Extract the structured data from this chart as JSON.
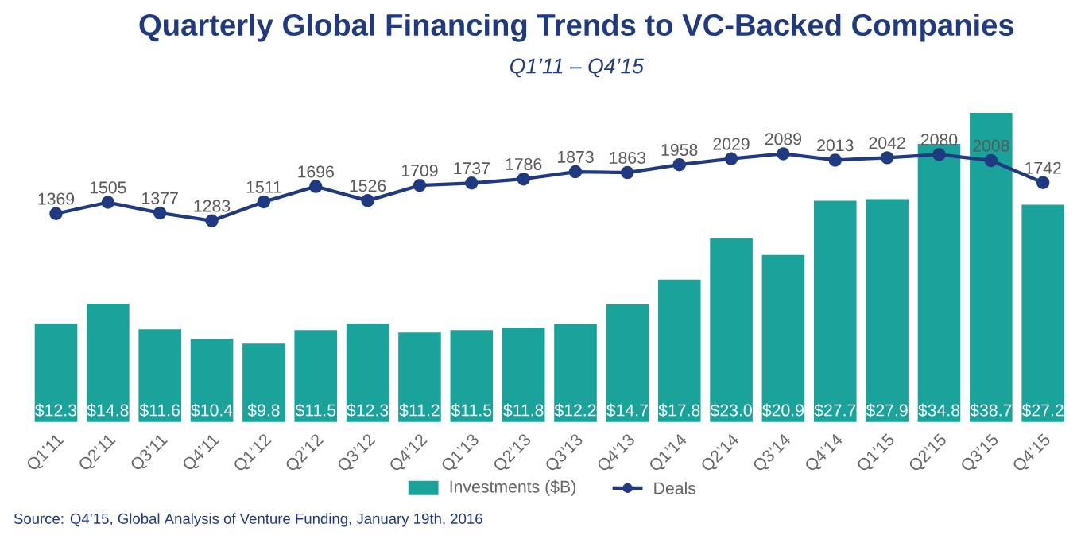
{
  "chart_data": {
    "type": "bar",
    "title": "Quarterly Global Financing Trends to VC-Backed Companies",
    "subtitle": "Q1’11 – Q4’15",
    "categories": [
      "Q1’11",
      "Q2’11",
      "Q3’11",
      "Q4’11",
      "Q1’12",
      "Q2’12",
      "Q3’12",
      "Q4’12",
      "Q1’13",
      "Q2’13",
      "Q3’13",
      "Q4’13",
      "Q1’14",
      "Q2’14",
      "Q3’14",
      "Q4’14",
      "Q1’15",
      "Q2’15",
      "Q3’15",
      "Q4’15"
    ],
    "series": [
      {
        "name": "Investments ($B)",
        "color": "#19a39b",
        "values": [
          12.3,
          14.8,
          11.6,
          10.4,
          9.8,
          11.5,
          12.3,
          11.2,
          11.5,
          11.8,
          12.2,
          14.7,
          17.8,
          23.0,
          20.9,
          27.7,
          27.9,
          34.8,
          38.7,
          27.2
        ],
        "value_labels": [
          "$12.3",
          "$14.8",
          "$11.6",
          "$10.4",
          "$9.8",
          "$11.5",
          "$12.3",
          "$11.2",
          "$11.5",
          "$11.8",
          "$12.2",
          "$14.7",
          "$17.8",
          "$23.0",
          "$20.9",
          "$27.7",
          "$27.9",
          "$34.8",
          "$38.7",
          "$27.2"
        ]
      },
      {
        "name": "Deals",
        "type": "line",
        "axis": "y2",
        "color": "#1f3a80",
        "values": [
          1369,
          1505,
          1377,
          1283,
          1511,
          1696,
          1526,
          1709,
          1737,
          1786,
          1873,
          1863,
          1958,
          2029,
          2089,
          2013,
          2042,
          2080,
          2008,
          1742
        ],
        "value_labels": [
          "1369",
          "1505",
          "1377",
          "1283",
          "1511",
          "1696",
          "1526",
          "1709",
          "1737",
          "1786",
          "1873",
          "1863",
          "1958",
          "2029",
          "2089",
          "2013",
          "2042",
          "2080",
          "2008",
          "1742"
        ]
      }
    ],
    "marker": "circle",
    "legend": "bottom",
    "grid": false,
    "annotations": [
      "Source: Q4’15, Global Analysis of Venture Funding, January 19th, 2016"
    ]
  }
}
